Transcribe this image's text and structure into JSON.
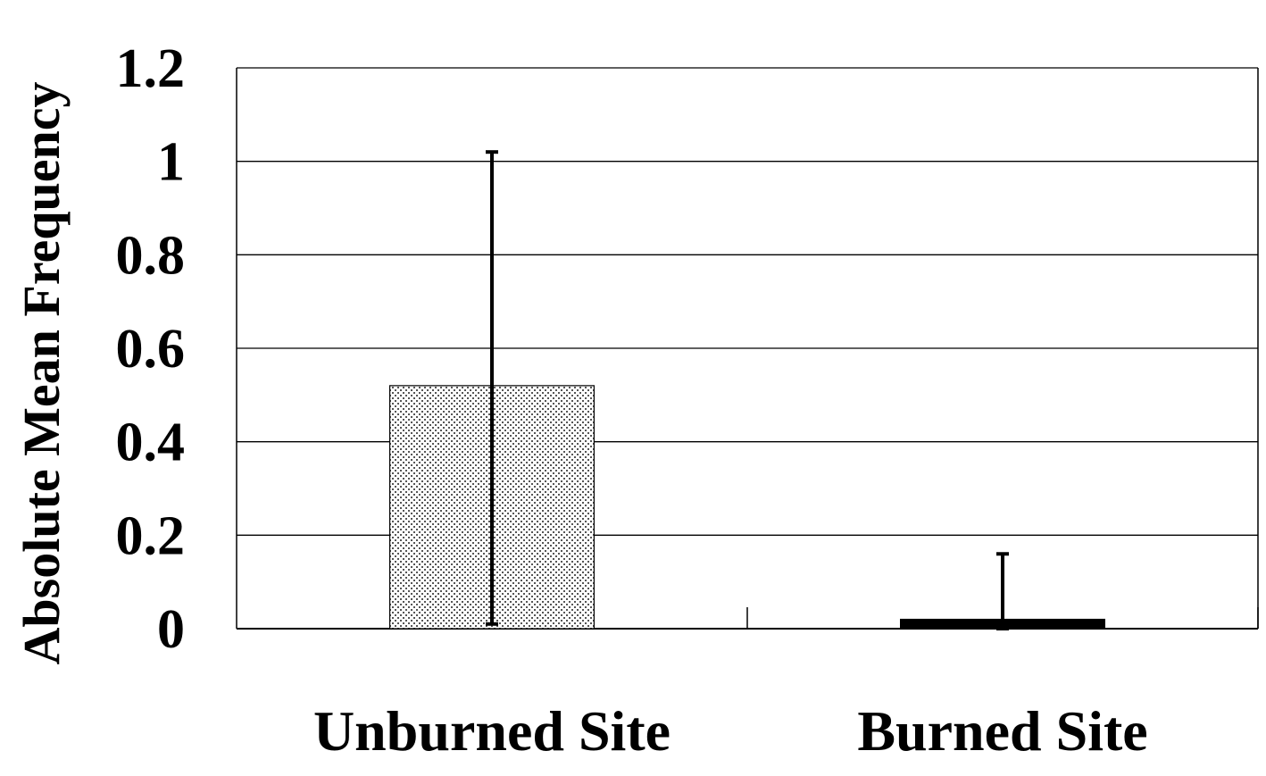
{
  "chart_data": {
    "type": "bar",
    "title": "",
    "xlabel": "",
    "ylabel": "Absolute Mean Frequency",
    "categories": [
      "Unburned Site",
      "Burned Site"
    ],
    "values": [
      0.52,
      0.02
    ],
    "error_upper": [
      1.02,
      0.16
    ],
    "error_lower": [
      0.01,
      0.0
    ],
    "ylim": [
      0,
      1.2
    ],
    "yticks": [
      0,
      0.2,
      0.4,
      0.6,
      0.8,
      1,
      1.2
    ],
    "ytick_labels": [
      "0",
      "0.2",
      "0.4",
      "0.6",
      "0.8",
      "1",
      "1.2"
    ],
    "grid": "horizontal",
    "legend": "none",
    "bar_fills": [
      "dotted-light-gray",
      "solid-black"
    ],
    "colors": {
      "bar_dots": "#555555",
      "bar_solid": "#000000",
      "grid": "#000000"
    }
  }
}
